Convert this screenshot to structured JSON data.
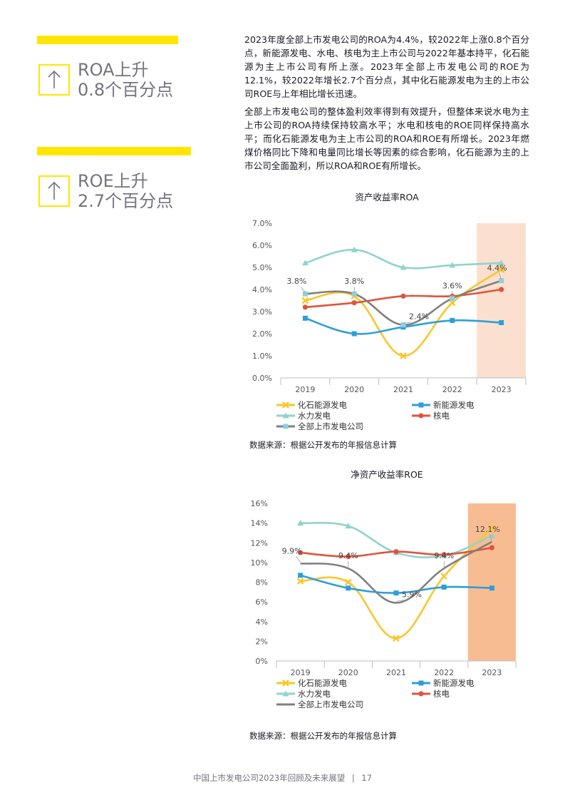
{
  "kpis": [
    {
      "line1": "ROA上升",
      "line2": "0.8个百分点"
    },
    {
      "line1": "ROE上升",
      "line2": "2.7个百分点"
    }
  ],
  "paragraphs": [
    "2023年度全部上市发电公司的ROA为4.4%，较2022年上涨0.8个百分点，新能源发电、水电、核电为主上市公司与2022年基本持平，化石能源为主上市公司有所上涨。2023年全部上市发电公司的ROE为12.1%，较2022年增长2.7个百分点，其中化石能源发电为主的上市公司ROE与上年相比增长迅速。",
    "全部上市发电公司的整体盈利效率得到有效提升，但整体来说水电为主上市公司的ROA持续保持较高水平；水电和核电的ROE同样保持高水平；而化石能源发电为主上市公司的ROA和ROE有所增长。2023年燃煤价格同比下降和电量同比增长等因素的综合影响，化石能源为主的上市公司全面盈利，所以ROA和ROE有所增长。"
  ],
  "chart_data": [
    {
      "type": "line",
      "title": "资产收益率ROA",
      "categories": [
        "2019",
        "2020",
        "2021",
        "2022",
        "2023"
      ],
      "y_ticks": [
        "0.0%",
        "1.0%",
        "2.0%",
        "3.0%",
        "4.0%",
        "5.0%",
        "6.0%",
        "7.0%"
      ],
      "ylim": [
        0,
        7
      ],
      "highlight_category": "2023",
      "highlight_color": "#fbe0cf",
      "series": [
        {
          "name": "化石能源发电",
          "values": [
            3.5,
            3.7,
            1.0,
            3.4,
            4.9
          ],
          "color": "#f9c62c",
          "marker": "x"
        },
        {
          "name": "新能源发电",
          "values": [
            2.7,
            2.0,
            2.3,
            2.6,
            2.5
          ],
          "color": "#2d9fd8",
          "marker": "square"
        },
        {
          "name": "水力发电",
          "values": [
            5.2,
            5.8,
            5.0,
            5.1,
            5.2
          ],
          "color": "#90d3cd",
          "marker": "triangle"
        },
        {
          "name": "核电",
          "values": [
            3.2,
            3.4,
            3.7,
            3.7,
            4.0
          ],
          "color": "#e0543c",
          "marker": "circle"
        },
        {
          "name": "全部上市发电公司",
          "values": [
            3.8,
            3.8,
            2.4,
            3.6,
            4.4
          ],
          "color": "#808080",
          "marker": "square-light"
        }
      ],
      "data_labels": [
        {
          "category": "2019",
          "value": 3.8,
          "text": "3.8%"
        },
        {
          "category": "2020",
          "value": 3.8,
          "text": "3.8%"
        },
        {
          "category": "2021",
          "value": 2.4,
          "text": "2.4%"
        },
        {
          "category": "2022",
          "value": 3.6,
          "text": "3.6%"
        },
        {
          "category": "2023",
          "value": 4.4,
          "text": "4.4%"
        }
      ],
      "source": "数据来源：根据公开发布的年报信息计算"
    },
    {
      "type": "line",
      "title": "净资产收益率ROE",
      "categories": [
        "2019",
        "2020",
        "2021",
        "2022",
        "2023"
      ],
      "y_ticks": [
        "0%",
        "2%",
        "4%",
        "6%",
        "8%",
        "10%",
        "12%",
        "14%",
        "16%"
      ],
      "ylim": [
        0,
        16
      ],
      "highlight_category": "2023",
      "highlight_color": "#f8bc93",
      "series": [
        {
          "name": "化石能源发电",
          "values": [
            8.1,
            8.0,
            2.3,
            8.6,
            13.5
          ],
          "color": "#f9c62c",
          "marker": "x"
        },
        {
          "name": "新能源发电",
          "values": [
            8.7,
            7.4,
            6.9,
            7.5,
            7.4
          ],
          "color": "#2d9fd8",
          "marker": "square"
        },
        {
          "name": "水力发电",
          "values": [
            14.0,
            13.7,
            11.0,
            10.7,
            12.7
          ],
          "color": "#90d3cd",
          "marker": "triangle"
        },
        {
          "name": "核电",
          "values": [
            11.0,
            10.6,
            11.1,
            10.8,
            11.5
          ],
          "color": "#e0543c",
          "marker": "circle"
        },
        {
          "name": "全部上市发电公司",
          "values": [
            9.9,
            9.4,
            5.9,
            9.4,
            12.1
          ],
          "color": "#808080",
          "marker": "none"
        }
      ],
      "data_labels": [
        {
          "category": "2019",
          "value": 9.9,
          "text": "9.9%"
        },
        {
          "category": "2020",
          "value": 9.4,
          "text": "9.4%"
        },
        {
          "category": "2021",
          "value": 5.9,
          "text": "5.9%"
        },
        {
          "category": "2022",
          "value": 9.4,
          "text": "9.4%"
        },
        {
          "category": "2023",
          "value": 12.1,
          "text": "12.1%"
        }
      ],
      "source": "数据来源：根据公开发布的年报信息计算"
    }
  ],
  "footer": {
    "text": "中国上市发电公司2023年回顾及未来展望",
    "separator": "|",
    "page": "17"
  }
}
